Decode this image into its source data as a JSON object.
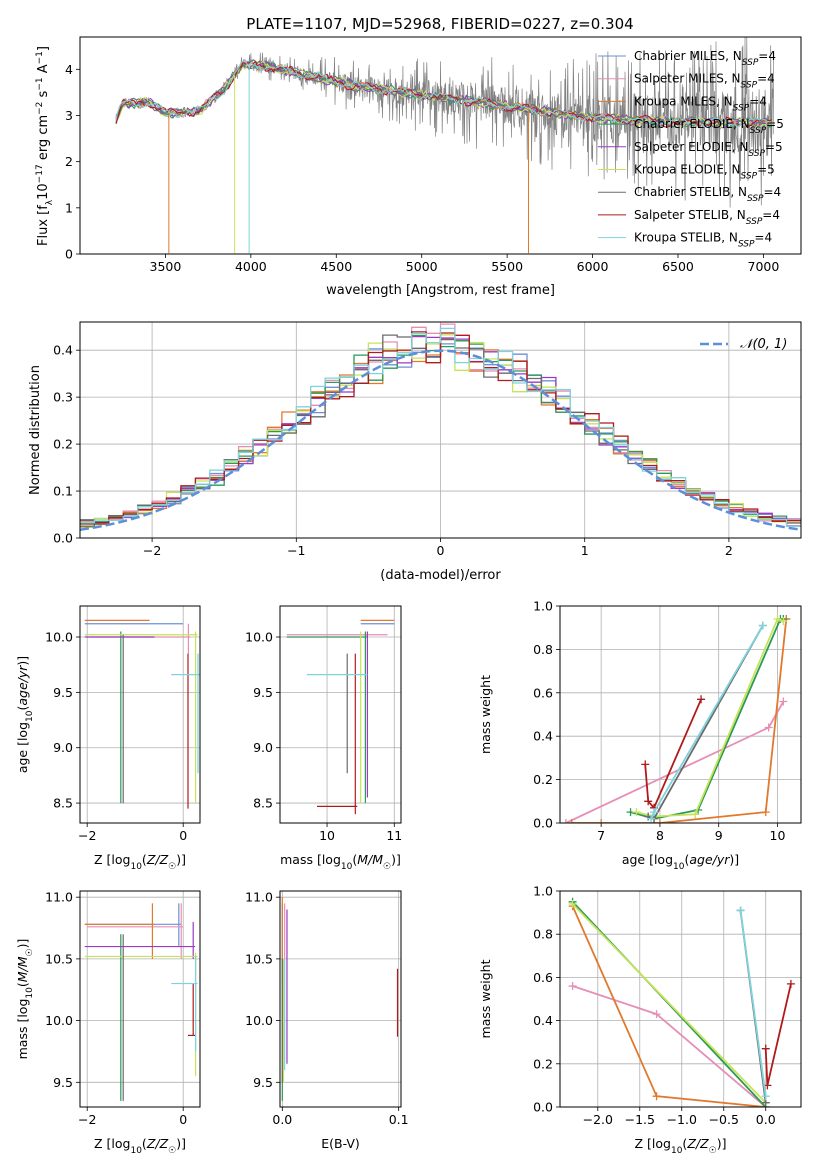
{
  "figure": {
    "title": "PLATE=1107, MJD=52968, FIBERID=0227, z=0.304"
  },
  "colors": {
    "chabrier_miles": "#6f8fd6",
    "salpeter_miles": "#e58fb7",
    "kroupa_miles": "#e0792d",
    "chabrier_elodie": "#2a9a55",
    "salpeter_elodie": "#9b3bc4",
    "kroupa_elodie": "#c6e35a",
    "chabrier_stelib": "#6b6b6b",
    "salpeter_stelib": "#b01a1a",
    "kroupa_stelib": "#7fd3de",
    "gauss": "#5b8fd9"
  },
  "chart_data": [
    {
      "id": "spectrum",
      "type": "line",
      "xlabel": "wavelength [Angstrom, rest frame]",
      "ylabel": "Flux [f_λ 10^-17 erg cm^-2 s^-1 A^-1]",
      "xlim": [
        3000,
        7220
      ],
      "ylim": [
        0,
        4.7
      ],
      "xticks": [
        3500,
        4000,
        4500,
        5000,
        5500,
        6000,
        6500,
        7000
      ],
      "yticks": [
        0,
        1,
        2,
        3,
        4
      ],
      "grid": false,
      "legend_position": "top-right",
      "data_range": [
        3210,
        7060
      ],
      "continuum": {
        "x": [
          3210,
          3250,
          3300,
          3400,
          3500,
          3700,
          3850,
          3950,
          4050,
          4300,
          4600,
          5000,
          5500,
          6000,
          6500,
          7060
        ],
        "y": [
          2.9,
          3.25,
          3.25,
          3.3,
          3.05,
          3.1,
          3.6,
          4.1,
          4.1,
          3.9,
          3.65,
          3.45,
          3.2,
          2.95,
          2.85,
          2.85
        ]
      },
      "series": [
        {
          "name": "Chabrier MILES, N_SSP=4",
          "label_main": "Chabrier MILES, N",
          "label_tail": "=4",
          "color_key": "chabrier_miles"
        },
        {
          "name": "Salpeter MILES, N_SSP=4",
          "label_main": "Salpeter MILES, N",
          "label_tail": "=4",
          "color_key": "salpeter_miles"
        },
        {
          "name": "Kroupa MILES, N_SSP=4",
          "label_main": "Kroupa MILES, N",
          "label_tail": "=4",
          "color_key": "kroupa_miles"
        },
        {
          "name": "Chabrier ELODIE, N_SSP=5",
          "label_main": "Chabrier ELODIE, N",
          "label_tail": "=5",
          "color_key": "chabrier_elodie"
        },
        {
          "name": "Salpeter ELODIE, N_SSP=5",
          "label_main": "Salpeter ELODIE, N",
          "label_tail": "=5",
          "color_key": "salpeter_elodie"
        },
        {
          "name": "Kroupa ELODIE, N_SSP=5",
          "label_main": "Kroupa ELODIE, N",
          "label_tail": "=5",
          "color_key": "kroupa_elodie"
        },
        {
          "name": "Chabrier STELIB, N_SSP=4",
          "label_main": "Chabrier STELIB, N",
          "label_tail": "=4",
          "color_key": "chabrier_stelib"
        },
        {
          "name": "Salpeter STELIB, N_SSP=4",
          "label_main": "Salpeter STELIB, N",
          "label_tail": "=4",
          "color_key": "salpeter_stelib"
        },
        {
          "name": "Kroupa STELIB, N_SSP=4",
          "label_main": "Kroupa STELIB, N",
          "label_tail": "=4",
          "color_key": "kroupa_stelib"
        }
      ],
      "legend_subscript": "SSP"
    },
    {
      "id": "residuals",
      "type": "histogram",
      "xlabel": "(data-model)/error",
      "ylabel": "Normed distribution",
      "xlim": [
        -2.5,
        2.5
      ],
      "ylim": [
        0,
        0.46
      ],
      "xticks": [
        -2,
        -1,
        0,
        1,
        2
      ],
      "yticks": [
        0.0,
        0.1,
        0.2,
        0.3,
        0.4
      ],
      "grid": true,
      "legend_position": "top-right",
      "gauss_label": "𝒩(0, 1)",
      "bin_width": 0.1,
      "bin_start": -2.5,
      "series_colors": [
        "chabrier_miles",
        "salpeter_miles",
        "kroupa_miles",
        "chabrier_elodie",
        "salpeter_elodie",
        "kroupa_elodie",
        "chabrier_stelib",
        "salpeter_stelib",
        "kroupa_stelib"
      ]
    },
    {
      "id": "age_vs_Z",
      "type": "errorbar",
      "xlabel": "Z [log10(Z/Z☉)]",
      "ylabel": "age  [log10(age/yr)]",
      "xlim": [
        -2.15,
        0.35
      ],
      "ylim": [
        8.32,
        10.28
      ],
      "xticks": [
        -2,
        0
      ],
      "yticks": [
        8.5,
        9.0,
        9.5,
        10.0
      ],
      "grid": true,
      "points": [
        {
          "color_key": "chabrier_miles",
          "x": [
            -2.05,
            0.0
          ],
          "y": 10.12,
          "yerr": [
            10.12,
            10.12
          ]
        },
        {
          "color_key": "salpeter_miles",
          "x": [
            -1.95,
            0.15
          ],
          "y": 10.0,
          "yerr": [
            9.85,
            10.12
          ]
        },
        {
          "color_key": "kroupa_miles",
          "x": [
            -2.05,
            -0.7
          ],
          "y": 10.15,
          "yerr": [
            10.15,
            10.15
          ]
        },
        {
          "color_key": "chabrier_elodie",
          "x": [
            -1.3,
            -1.3
          ],
          "y": 9.9,
          "yerr": [
            8.5,
            10.05
          ]
        },
        {
          "color_key": "salpeter_elodie",
          "x": [
            -2.05,
            -0.6
          ],
          "y": 10.0,
          "yerr": [
            10.0,
            10.0
          ]
        },
        {
          "color_key": "kroupa_elodie",
          "x": [
            -2.05,
            0.3
          ],
          "y": 10.02,
          "yerr": [
            8.5,
            10.05
          ]
        },
        {
          "color_key": "chabrier_stelib",
          "x": [
            -1.25,
            -1.25
          ],
          "y": 9.3,
          "yerr": [
            8.5,
            10.02
          ]
        },
        {
          "color_key": "salpeter_stelib",
          "x": [
            0.1,
            0.1
          ],
          "y": 8.47,
          "yerr": [
            8.45,
            9.85
          ]
        },
        {
          "color_key": "kroupa_stelib",
          "x": [
            -0.25,
            0.35
          ],
          "y": 9.66,
          "yerr": [
            8.77,
            9.85
          ]
        }
      ]
    },
    {
      "id": "age_vs_mass",
      "type": "errorbar",
      "xlabel": "mass [log10(M/M☉)]",
      "ylabel": "",
      "xlim": [
        9.3,
        11.1
      ],
      "ylim": [
        8.32,
        10.28
      ],
      "xticks": [
        9,
        10,
        11
      ],
      "yticks": [
        8.5,
        9.0,
        9.5,
        10.0
      ],
      "grid": true,
      "points": [
        {
          "color_key": "chabrier_miles",
          "x": [
            10.5,
            11.0
          ],
          "y": 10.12
        },
        {
          "color_key": "salpeter_miles",
          "x": [
            9.4,
            10.9
          ],
          "y": 10.02
        },
        {
          "color_key": "kroupa_miles",
          "x": [
            10.5,
            11.0
          ],
          "y": 10.15
        },
        {
          "color_key": "chabrier_elodie",
          "x": [
            9.4,
            10.6
          ],
          "y": 10.0,
          "yerr": [
            8.5,
            10.05
          ]
        },
        {
          "color_key": "salpeter_elodie",
          "x": [
            10.6,
            10.6
          ],
          "y": 9.4,
          "yerr": [
            8.55,
            10.05
          ]
        },
        {
          "color_key": "kroupa_elodie",
          "x": [
            10.5,
            10.5
          ],
          "y": 9.5,
          "yerr": [
            8.5,
            10.05
          ]
        },
        {
          "color_key": "chabrier_stelib",
          "x": [
            10.3,
            10.3
          ],
          "y": 9.66,
          "yerr": [
            8.77,
            9.85
          ]
        },
        {
          "color_key": "salpeter_stelib",
          "x": [
            9.85,
            10.45
          ],
          "y": 8.47,
          "yerr": [
            8.4,
            9.85
          ]
        },
        {
          "color_key": "kroupa_stelib",
          "x": [
            9.7,
            10.6
          ],
          "y": 9.66
        }
      ]
    },
    {
      "id": "weight_vs_age",
      "type": "line",
      "xlabel": "age  [log10(age/yr)]",
      "ylabel": "mass weight",
      "xlim": [
        6.3,
        10.4
      ],
      "ylim": [
        0,
        1.0
      ],
      "xticks": [
        7,
        8,
        9,
        10
      ],
      "yticks": [
        0.0,
        0.2,
        0.4,
        0.6,
        0.8,
        1.0
      ],
      "grid": true,
      "series": [
        {
          "color_key": "salpeter_miles",
          "x": [
            6.4,
            9.85,
            10.1
          ],
          "y": [
            0.0,
            0.44,
            0.56
          ]
        },
        {
          "color_key": "kroupa_miles",
          "x": [
            6.5,
            7.0,
            8.0,
            9.8,
            10.15,
            10.15
          ],
          "y": [
            0.0,
            0.0,
            0.0,
            0.05,
            0.94,
            0.94
          ]
        },
        {
          "color_key": "chabrier_elodie",
          "x": [
            7.5,
            7.9,
            8.65,
            10.05,
            10.1
          ],
          "y": [
            0.05,
            0.02,
            0.06,
            0.94,
            0.94
          ]
        },
        {
          "color_key": "kroupa_elodie",
          "x": [
            7.6,
            7.9,
            8.6,
            10.0,
            10.1
          ],
          "y": [
            0.05,
            0.03,
            0.04,
            0.94,
            0.93
          ]
        },
        {
          "color_key": "salpeter_stelib",
          "x": [
            7.75,
            7.8,
            7.9,
            8.7
          ],
          "y": [
            0.27,
            0.1,
            0.07,
            0.57
          ]
        },
        {
          "color_key": "chabrier_stelib",
          "x": [
            7.8,
            7.9,
            9.75
          ],
          "y": [
            0.03,
            0.02,
            0.91
          ]
        },
        {
          "color_key": "kroupa_stelib",
          "x": [
            7.85,
            7.9,
            9.75
          ],
          "y": [
            0.02,
            0.05,
            0.91
          ]
        }
      ]
    },
    {
      "id": "mass_vs_Z",
      "type": "errorbar",
      "xlabel": "Z [log10(Z/Z☉)]",
      "ylabel": "mass [log10(M/M☉)]",
      "xlim": [
        -2.15,
        0.35
      ],
      "ylim": [
        9.3,
        11.05
      ],
      "xticks": [
        -2,
        0
      ],
      "yticks": [
        9.5,
        10.0,
        10.5,
        11.0
      ],
      "grid": true,
      "points": [
        {
          "color_key": "chabrier_miles",
          "x": [
            -2.05,
            -0.05
          ],
          "y": 10.78,
          "yerr": [
            10.6,
            10.95
          ]
        },
        {
          "color_key": "salpeter_miles",
          "x": [
            -2.0,
            0.0
          ],
          "y": 10.76,
          "yerr": [
            10.5,
            10.95
          ]
        },
        {
          "color_key": "kroupa_miles",
          "x": [
            -2.05,
            -0.6
          ],
          "y": 10.78,
          "yerr": [
            10.5,
            10.95
          ]
        },
        {
          "color_key": "chabrier_elodie",
          "x": [
            -1.3,
            -1.3
          ],
          "y": 10.5,
          "yerr": [
            9.35,
            10.7
          ]
        },
        {
          "color_key": "salpeter_elodie",
          "x": [
            -2.05,
            0.25
          ],
          "y": 10.6,
          "yerr": [
            10.5,
            10.8
          ]
        },
        {
          "color_key": "kroupa_elodie",
          "x": [
            -2.05,
            0.3
          ],
          "y": 10.52,
          "yerr": [
            9.55,
            10.55
          ]
        },
        {
          "color_key": "chabrier_stelib",
          "x": [
            -1.25,
            -1.25
          ],
          "y": 10.3,
          "yerr": [
            9.35,
            10.7
          ]
        },
        {
          "color_key": "salpeter_stelib",
          "x": [
            0.1,
            0.25
          ],
          "y": 9.88,
          "yerr": [
            9.88,
            10.3
          ]
        },
        {
          "color_key": "kroupa_stelib",
          "x": [
            -0.25,
            0.3
          ],
          "y": 10.3,
          "yerr": [
            9.75,
            10.52
          ]
        }
      ]
    },
    {
      "id": "mass_vs_EBV",
      "type": "errorbar",
      "xlabel": "E(B-V)",
      "ylabel": "",
      "xlim": [
        -0.002,
        0.102
      ],
      "ylim": [
        9.3,
        11.05
      ],
      "xticks": [
        0.0,
        0.1
      ],
      "yticks": [
        9.5,
        10.0,
        10.5,
        11.0
      ],
      "grid": true,
      "points": [
        {
          "color_key": "chabrier_miles",
          "x": [
            0.0,
            0.0
          ],
          "y": 10.6,
          "yerr": [
            10.3,
            10.95
          ]
        },
        {
          "color_key": "salpeter_miles",
          "x": [
            0.002,
            0.002
          ],
          "y": 10.7,
          "yerr": [
            10.5,
            10.95
          ]
        },
        {
          "color_key": "kroupa_miles",
          "x": [
            0.0,
            0.0
          ],
          "y": 10.8,
          "yerr": [
            10.5,
            11.0
          ]
        },
        {
          "color_key": "chabrier_elodie",
          "x": [
            0.0,
            0.0
          ],
          "y": 10.0,
          "yerr": [
            9.35,
            10.5
          ]
        },
        {
          "color_key": "salpeter_elodie",
          "x": [
            0.004,
            0.004
          ],
          "y": 10.2,
          "yerr": [
            9.65,
            10.9
          ]
        },
        {
          "color_key": "kroupa_elodie",
          "x": [
            0.001,
            0.001
          ],
          "y": 10.0,
          "yerr": [
            9.5,
            10.5
          ]
        },
        {
          "color_key": "chabrier_stelib",
          "x": [
            0.0,
            0.0
          ],
          "y": 10.0,
          "yerr": [
            9.5,
            10.5
          ]
        },
        {
          "color_key": "salpeter_stelib",
          "x": [
            0.099,
            0.099
          ],
          "y": 10.1,
          "yerr": [
            9.87,
            10.42
          ]
        },
        {
          "color_key": "kroupa_stelib",
          "x": [
            0.002,
            0.002
          ],
          "y": 10.0,
          "yerr": [
            9.6,
            10.5
          ]
        }
      ]
    },
    {
      "id": "weight_vs_Z",
      "type": "line",
      "xlabel": "Z [log10(Z/Z☉)]",
      "ylabel": "mass weight",
      "xlim": [
        -2.45,
        0.42
      ],
      "ylim": [
        0,
        1.0
      ],
      "xticks": [
        -2.0,
        -1.5,
        -1.0,
        -0.5,
        0.0
      ],
      "yticks": [
        0.0,
        0.2,
        0.4,
        0.6,
        0.8,
        1.0
      ],
      "grid": true,
      "series": [
        {
          "color_key": "salpeter_miles",
          "x": [
            -2.3,
            -1.3,
            0.0
          ],
          "y": [
            0.56,
            0.43,
            0.0
          ]
        },
        {
          "color_key": "kroupa_miles",
          "x": [
            -2.3,
            -1.3,
            0.0
          ],
          "y": [
            0.93,
            0.05,
            0.0
          ]
        },
        {
          "color_key": "chabrier_elodie",
          "x": [
            -2.3,
            0.0
          ],
          "y": [
            0.95,
            0.0
          ]
        },
        {
          "color_key": "kroupa_elodie",
          "x": [
            -2.3,
            0.0
          ],
          "y": [
            0.94,
            0.02
          ]
        },
        {
          "color_key": "salpeter_stelib",
          "x": [
            0.0,
            0.02,
            0.3
          ],
          "y": [
            0.27,
            0.1,
            0.57
          ]
        },
        {
          "color_key": "chabrier_stelib",
          "x": [
            -0.3,
            0.0
          ],
          "y": [
            0.91,
            0.02
          ]
        },
        {
          "color_key": "kroupa_stelib",
          "x": [
            -0.3,
            0.0
          ],
          "y": [
            0.91,
            0.05
          ]
        }
      ]
    }
  ]
}
